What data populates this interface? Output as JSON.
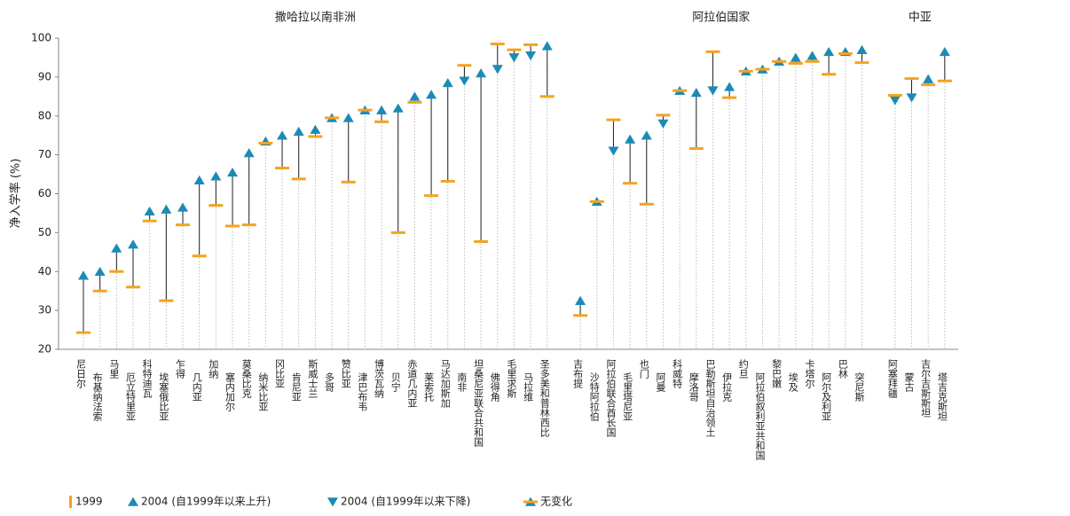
{
  "chart_data": {
    "type": "dumbbell",
    "ylabel": "净入学率 (%)",
    "ylim": [
      20,
      100
    ],
    "yticks": [
      20,
      30,
      40,
      50,
      60,
      70,
      80,
      90,
      100
    ],
    "colors": {
      "y1999": "#f5a31f",
      "y2004": "#1b8bb5"
    },
    "legend": [
      "1999",
      "2004 (自1999年以来上升)",
      "2004 (自1999年以来下降)",
      "无变化"
    ],
    "groups": [
      {
        "name": "撒哈拉以南非洲",
        "categories": [
          "尼日尔",
          "布基纳法索",
          "马里",
          "厄立特里亚",
          "科特迪瓦",
          "埃塞俄比亚",
          "乍得",
          "几内亚",
          "加纳",
          "塞内加尔",
          "莫桑比克",
          "纳米比亚",
          "冈比亚",
          "肯尼亚",
          "斯威士兰",
          "多哥",
          "赞比亚",
          "津巴布韦",
          "博茨瓦纳",
          "贝宁",
          "赤道几内亚",
          "莱索托",
          "马达加斯加",
          "南非",
          "坦桑尼亚联合共和国",
          "佛得角",
          "毛里求斯",
          "马拉维",
          "圣多美和普林西比"
        ],
        "v1999": [
          24.3,
          35,
          40,
          36,
          53,
          32.5,
          52,
          44,
          57,
          51.7,
          52,
          73,
          66.6,
          63.8,
          74.7,
          79.5,
          63,
          81.5,
          78.5,
          50,
          83.5,
          59.5,
          63.2,
          93,
          47.7,
          98.5,
          97,
          98.3,
          85
        ],
        "v2004": [
          39,
          40,
          46,
          47,
          55.5,
          56,
          56.5,
          63.5,
          64.5,
          65.5,
          70.5,
          73.5,
          75,
          76,
          76.5,
          79.5,
          79.5,
          81.5,
          81.5,
          82,
          85,
          85.5,
          88.5,
          89,
          91,
          92,
          95,
          95.5,
          98
        ]
      },
      {
        "name": "阿拉伯国家",
        "categories": [
          "吉布提",
          "沙特阿拉伯",
          "阿拉伯联合酋长国",
          "毛里塔尼亚",
          "也门",
          "阿曼",
          "科威特",
          "摩洛哥",
          "巴勒斯坦自治领土",
          "伊拉克",
          "约旦",
          "阿拉伯叙利亚共和国",
          "黎巴嫩",
          "埃及",
          "卡塔尔",
          "阿尔及利亚",
          "巴林",
          "突尼斯"
        ],
        "v1999": [
          28.7,
          58,
          79,
          62.7,
          57.3,
          80.2,
          86.5,
          71.6,
          96.5,
          84.7,
          91.5,
          92,
          94,
          93.5,
          94,
          90.7,
          96,
          93.7
        ],
        "v2004": [
          32.5,
          58,
          71,
          74,
          75,
          78,
          86.5,
          86,
          86.5,
          87.5,
          91.5,
          92,
          94,
          95,
          95.5,
          96.5,
          96.5,
          97
        ]
      },
      {
        "name": "中亚",
        "categories": [
          "阿塞拜疆",
          "蒙古",
          "吉尔吉斯斯坦",
          "塔吉克斯坦"
        ],
        "v1999": [
          85.3,
          89.6,
          88,
          89
        ],
        "v2004": [
          84,
          84.7,
          89.5,
          96.5
        ]
      }
    ]
  }
}
